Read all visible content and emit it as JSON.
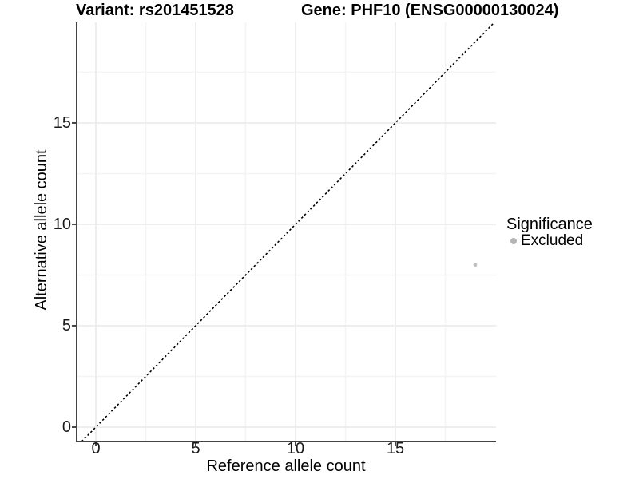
{
  "chart_data": {
    "type": "scatter",
    "title_left": "Variant: rs201451528",
    "title_right": "Gene: PHF10 (ENSG00000130024)",
    "xlabel": "Reference allele count",
    "ylabel": "Alternative allele count",
    "xlim": [
      -0.96,
      20.04
    ],
    "ylim": [
      -0.71,
      19.96
    ],
    "xticks": [
      0,
      5,
      10,
      15
    ],
    "yticks": [
      0,
      5,
      10,
      15
    ],
    "xminor": [
      2.5,
      7.5,
      12.5,
      17.5
    ],
    "yminor": [
      2.5,
      7.5,
      12.5,
      17.5
    ],
    "grid": true,
    "points": [
      {
        "x": 19,
        "y": 8,
        "significance": "Excluded"
      }
    ],
    "reference_line": {
      "style": "dashed",
      "slope": 1,
      "intercept": 0
    },
    "legend": {
      "title": "Significance",
      "position": "right",
      "items": [
        {
          "label": "Excluded",
          "color": "#b4b4b4"
        }
      ]
    },
    "colors": {
      "point": "#c1c1c1",
      "axis": "#434343",
      "grid_major": "#ececec",
      "grid_minor": "#f4f4f4",
      "reference_line": "#000000",
      "background": "#ffffff"
    }
  }
}
